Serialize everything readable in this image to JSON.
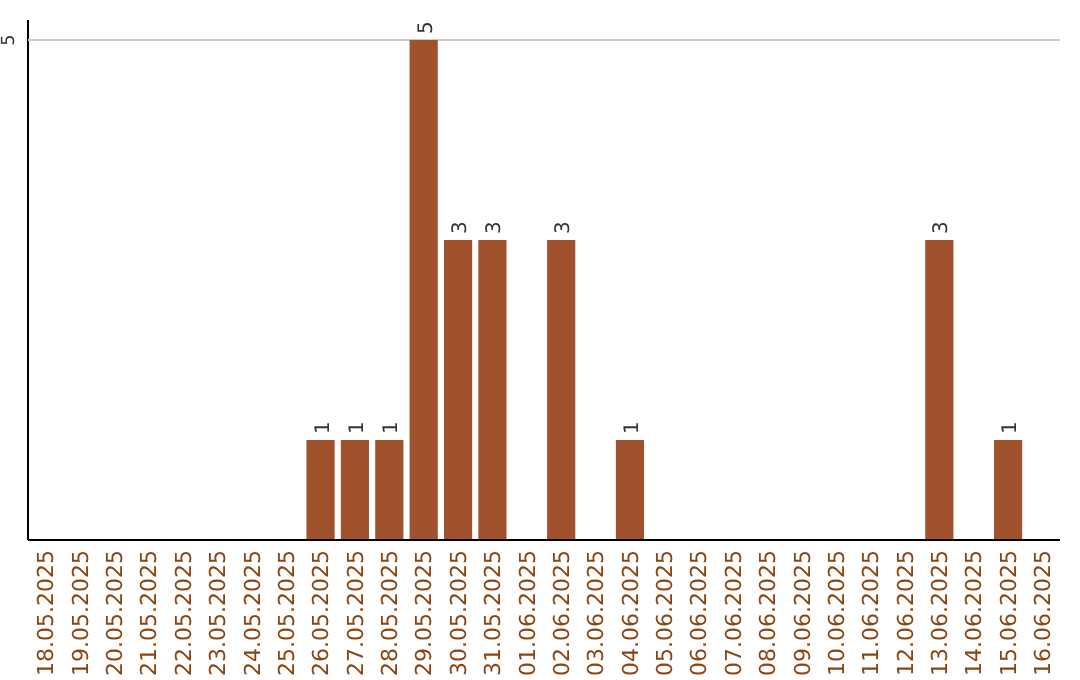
{
  "chart_data": {
    "type": "bar",
    "categories": [
      "18.05.2025",
      "19.05.2025",
      "20.05.2025",
      "21.05.2025",
      "22.05.2025",
      "23.05.2025",
      "24.05.2025",
      "25.05.2025",
      "26.05.2025",
      "27.05.2025",
      "28.05.2025",
      "29.05.2025",
      "30.05.2025",
      "31.05.2025",
      "01.06.2025",
      "02.06.2025",
      "03.06.2025",
      "04.06.2025",
      "05.06.2025",
      "06.06.2025",
      "07.06.2025",
      "08.06.2025",
      "09.06.2025",
      "10.06.2025",
      "11.06.2025",
      "12.06.2025",
      "13.06.2025",
      "14.06.2025",
      "15.06.2025",
      "16.06.2025"
    ],
    "values": [
      0,
      0,
      0,
      0,
      0,
      0,
      0,
      0,
      1,
      1,
      1,
      5,
      3,
      3,
      0,
      3,
      0,
      1,
      0,
      0,
      0,
      0,
      0,
      0,
      0,
      0,
      3,
      0,
      1,
      0
    ],
    "value_labels": [
      null,
      null,
      null,
      null,
      null,
      null,
      null,
      null,
      "1",
      "1",
      "1",
      "5",
      "3",
      "3",
      null,
      "3",
      null,
      "1",
      null,
      null,
      null,
      null,
      null,
      null,
      null,
      null,
      "3",
      null,
      "1",
      null
    ],
    "color": "#a0522d",
    "ylim": [
      0,
      5.2
    ],
    "yticks": [
      5
    ],
    "grid": "y"
  }
}
